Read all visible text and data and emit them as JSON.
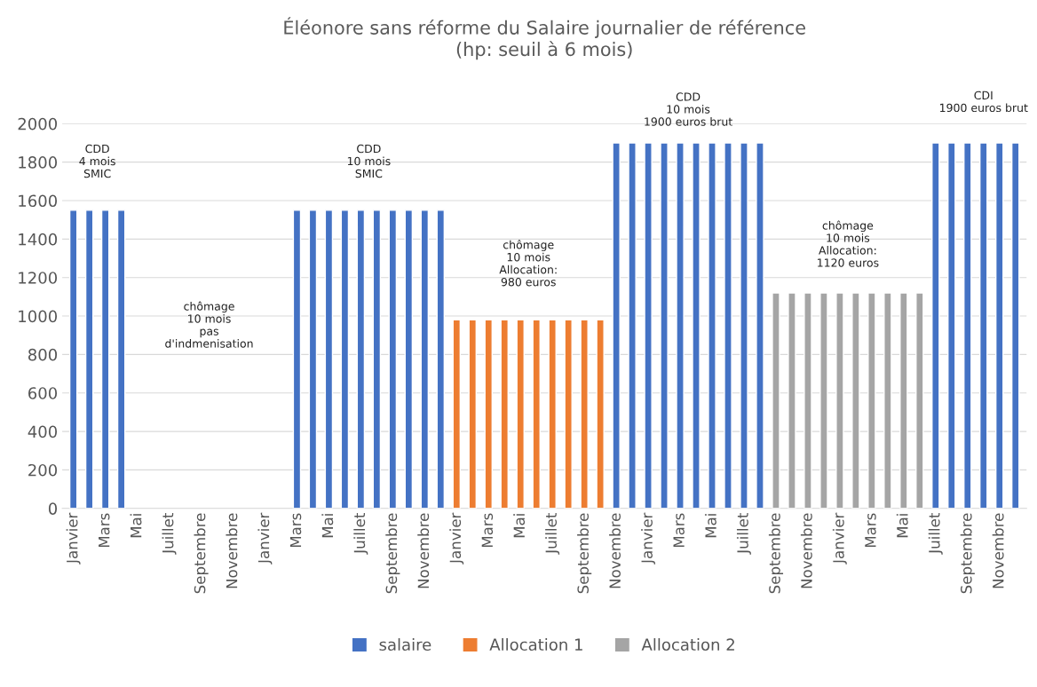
{
  "chart_data": {
    "type": "bar",
    "title": "Éléonore sans réforme du Salaire journalier de référence\n(hp: seuil à 6 mois)",
    "categories": [
      "Janvier",
      null,
      "Mars",
      null,
      "Mai",
      null,
      "Juillet",
      null,
      "Septembre",
      null,
      "Novembre",
      null,
      "Janvier",
      null,
      "Mars",
      null,
      "Mai",
      null,
      "Juillet",
      null,
      "Septembre",
      null,
      "Novembre",
      null,
      "Janvier",
      null,
      "Mars",
      null,
      "Mai",
      null,
      "Juillet",
      null,
      "Septembre",
      null,
      "Novembre",
      null,
      "Janvier",
      null,
      "Mars",
      null,
      "Mai",
      null,
      "Juillet",
      null,
      "Septembre",
      null,
      "Novembre",
      null,
      "Janvier",
      null,
      "Mars",
      null,
      "Mai",
      null,
      "Juillet",
      null,
      "Septembre",
      null,
      "Novembre",
      null
    ],
    "series": [
      {
        "name": "salaire",
        "color": "#4472c4",
        "values": [
          1550,
          1550,
          1550,
          1550,
          null,
          null,
          null,
          null,
          null,
          null,
          null,
          null,
          null,
          null,
          1550,
          1550,
          1550,
          1550,
          1550,
          1550,
          1550,
          1550,
          1550,
          1550,
          null,
          null,
          null,
          null,
          null,
          null,
          null,
          null,
          null,
          null,
          1900,
          1900,
          1900,
          1900,
          1900,
          1900,
          1900,
          1900,
          1900,
          1900,
          null,
          null,
          null,
          null,
          null,
          null,
          null,
          null,
          null,
          null,
          1900,
          1900,
          1900,
          1900,
          1900,
          1900
        ]
      },
      {
        "name": "Allocation 1",
        "color": "#ed7d31",
        "values": [
          null,
          null,
          null,
          null,
          null,
          null,
          null,
          null,
          null,
          null,
          null,
          null,
          null,
          null,
          null,
          null,
          null,
          null,
          null,
          null,
          null,
          null,
          null,
          null,
          980,
          980,
          980,
          980,
          980,
          980,
          980,
          980,
          980,
          980,
          null,
          null,
          null,
          null,
          null,
          null,
          null,
          null,
          null,
          null,
          null,
          null,
          null,
          null,
          null,
          null,
          null,
          null,
          null,
          null,
          null,
          null,
          null,
          null,
          null,
          null
        ]
      },
      {
        "name": "Allocation 2",
        "color": "#a5a5a5",
        "values": [
          null,
          null,
          null,
          null,
          null,
          null,
          null,
          null,
          null,
          null,
          null,
          null,
          null,
          null,
          null,
          null,
          null,
          null,
          null,
          null,
          null,
          null,
          null,
          null,
          null,
          null,
          null,
          null,
          null,
          null,
          null,
          null,
          null,
          null,
          null,
          null,
          null,
          null,
          null,
          null,
          null,
          null,
          null,
          null,
          1120,
          1120,
          1120,
          1120,
          1120,
          1120,
          1120,
          1120,
          1120,
          1120,
          null,
          null,
          null,
          null,
          null,
          null
        ]
      }
    ],
    "ylim": [
      0,
      2000
    ],
    "yticks": [
      0,
      200,
      400,
      600,
      800,
      1000,
      1200,
      1400,
      1600,
      1800,
      2000
    ],
    "grid": "y",
    "legend": "bottom",
    "annotations": [
      "CDD\n4 mois\nSMIC",
      "chômage\n10 mois\npas\nd'indmenisation",
      "CDD\n10 mois\nSMIC",
      "chômage\n10 mois\nAllocation:\n980 euros",
      "CDD\n10 mois\n1900 euros brut",
      "chômage\n10 mois\nAllocation:\n1120 euros",
      "CDI\n1900 euros brut"
    ]
  }
}
